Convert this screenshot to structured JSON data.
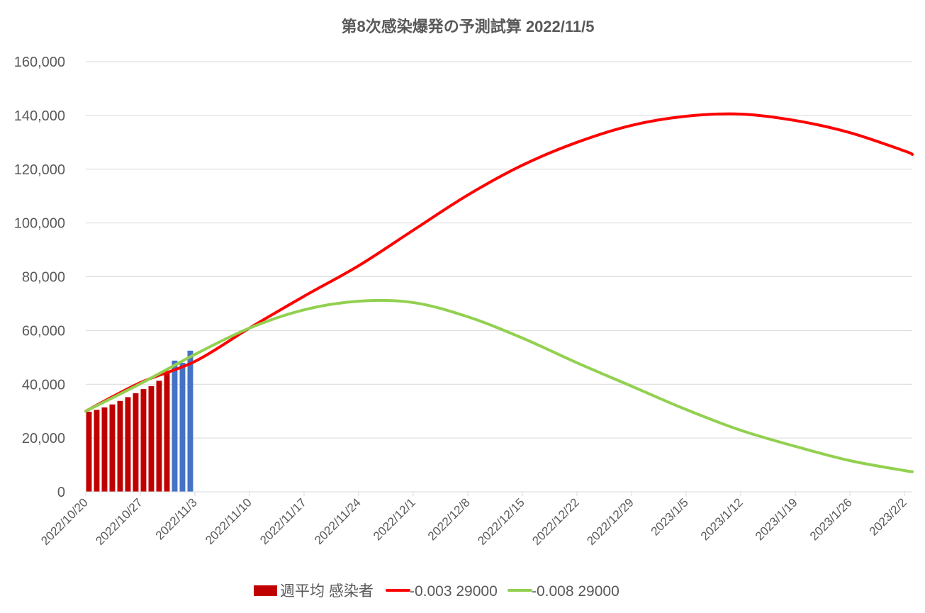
{
  "chart_data": {
    "type": "bar+line",
    "title": "第8次感染爆発の予測試算  2022/11/5",
    "xlabel": "",
    "ylabel": "",
    "ylim": [
      0,
      160000
    ],
    "y_ticks": [
      "0",
      "20,000",
      "40,000",
      "60,000",
      "80,000",
      "100,000",
      "120,000",
      "140,000",
      "160,000"
    ],
    "y_tick_values": [
      0,
      20000,
      40000,
      60000,
      80000,
      100000,
      120000,
      140000,
      160000
    ],
    "x_start": "2022/10/20",
    "x_days": 106,
    "x_ticks": [
      "2022/10/20",
      "2022/10/27",
      "2022/11/3",
      "2022/11/10",
      "2022/11/17",
      "2022/11/24",
      "2022/12/1",
      "2022/12/8",
      "2022/12/15",
      "2022/12/22",
      "2022/12/29",
      "2023/1/5",
      "2023/1/12",
      "2023/1/19",
      "2023/1/26",
      "2023/2/2"
    ],
    "grid": true,
    "legend_position": "bottom",
    "bars": {
      "name": "週平均 感染者",
      "color": "#C00000",
      "highlight_color": "#4472C4",
      "values": [
        29800,
        30500,
        31400,
        32500,
        33800,
        35200,
        36700,
        38200,
        39300,
        41300,
        45000,
        48800,
        48000,
        52500
      ],
      "highlight_from_index": 11
    },
    "series": [
      {
        "name": "-0.003 29000",
        "color": "#FF0000",
        "day": [
          0,
          7,
          14,
          21,
          28,
          35,
          42,
          49,
          56,
          63,
          70,
          77,
          84,
          91,
          98,
          105,
          106
        ],
        "values": [
          30000,
          40600,
          48500,
          60900,
          72750,
          84100,
          97300,
          110400,
          121500,
          130000,
          136300,
          139700,
          140500,
          138100,
          133600,
          126800,
          125500
        ]
      },
      {
        "name": "-0.008 29000",
        "color": "#92D050",
        "day": [
          0,
          7,
          14,
          21,
          28,
          35,
          42,
          49,
          56,
          63,
          70,
          77,
          84,
          91,
          98,
          105,
          106
        ],
        "values": [
          30000,
          40200,
          51100,
          60900,
          67700,
          70900,
          70400,
          65100,
          57200,
          48000,
          39300,
          30600,
          22900,
          16900,
          11600,
          7900,
          7500
        ]
      }
    ]
  }
}
